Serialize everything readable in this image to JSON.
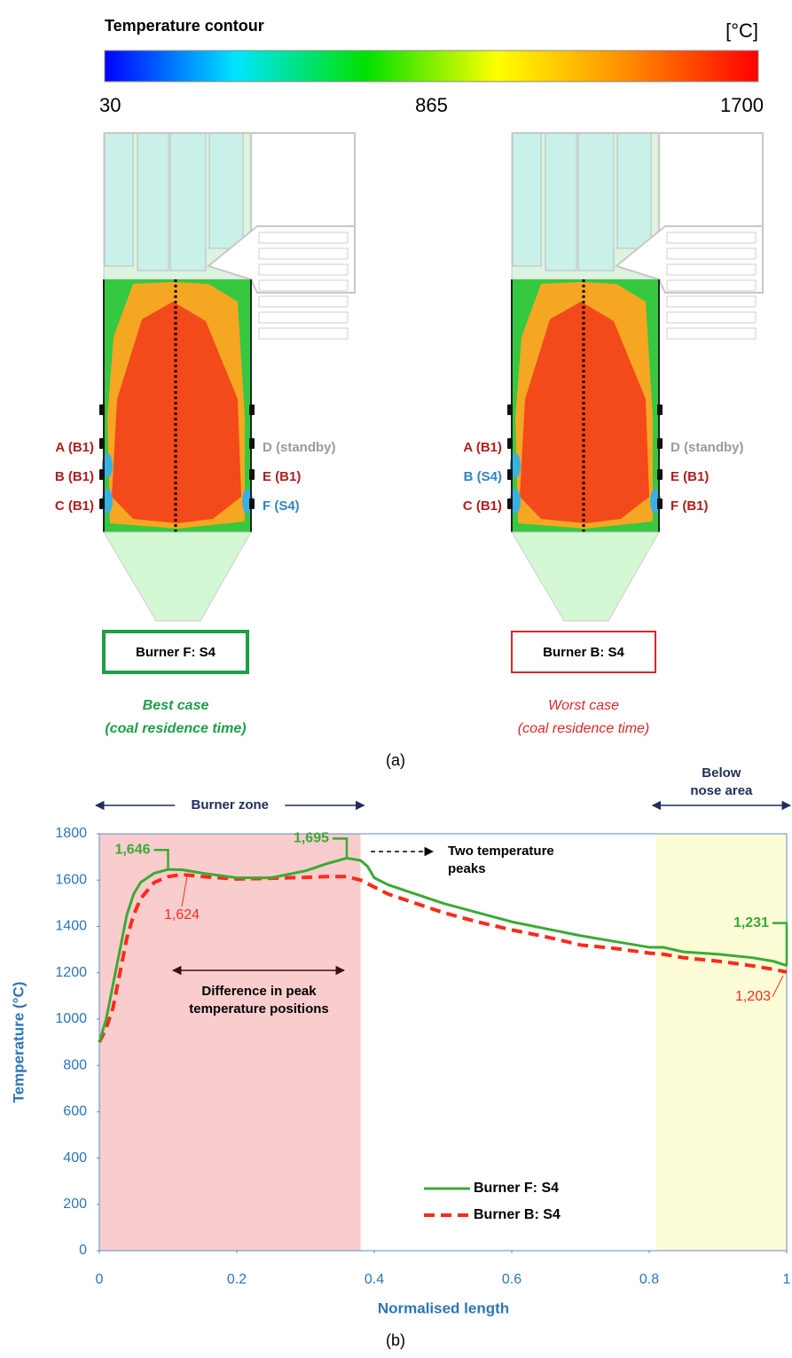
{
  "colorbar": {
    "title": "Temperature contour",
    "unit": "[°C]",
    "colors": [
      "#0000ff",
      "#00e5ff",
      "#00e000",
      "#ffff00",
      "#ff8c00",
      "#ff0000"
    ],
    "range": [
      30,
      1700
    ],
    "ticks": [
      30,
      865,
      1700
    ]
  },
  "furnaces": [
    {
      "left_labels": [
        {
          "text": "A (B1)",
          "color": "#b01e1e"
        },
        {
          "text": "B (B1)",
          "color": "#b01e1e"
        },
        {
          "text": "C (B1)",
          "color": "#b01e1e"
        }
      ],
      "right_labels": [
        {
          "text": "D (standby)",
          "color": "#9a9a9a"
        },
        {
          "text": "E (B1)",
          "color": "#b01e1e"
        },
        {
          "text": "F (S4)",
          "color": "#2e86c1"
        }
      ],
      "case_label": "Burner F: S4",
      "case_color": "#1e9e4a",
      "caption": [
        "Best case",
        "(coal residence time)"
      ],
      "caption_bold": true
    },
    {
      "left_labels": [
        {
          "text": "A (B1)",
          "color": "#b01e1e"
        },
        {
          "text": "B (S4)",
          "color": "#2e86c1"
        },
        {
          "text": "C (B1)",
          "color": "#b01e1e"
        }
      ],
      "right_labels": [
        {
          "text": "D (standby)",
          "color": "#9a9a9a"
        },
        {
          "text": "E (B1)",
          "color": "#b01e1e"
        },
        {
          "text": "F (B1)",
          "color": "#b01e1e"
        }
      ],
      "case_label": "Burner B: S4",
      "case_color": "#d42a2a",
      "caption": [
        "Worst case",
        "(coal residence time)"
      ],
      "caption_bold": false
    }
  ],
  "panel_labels": [
    "(a)",
    "(b)"
  ],
  "chart_data": {
    "type": "line",
    "xlabel": "Normalised length",
    "ylabel": "Temperature (°C)",
    "xlim": [
      0,
      1
    ],
    "ylim": [
      0,
      1800
    ],
    "xticks": [
      0,
      0.2,
      0.4,
      0.6,
      0.8,
      1
    ],
    "yticks": [
      0,
      200,
      400,
      600,
      800,
      1000,
      1200,
      1400,
      1600,
      1800
    ],
    "legend": "lower right",
    "x": [
      0,
      0.01,
      0.02,
      0.03,
      0.04,
      0.05,
      0.06,
      0.08,
      0.1,
      0.12,
      0.15,
      0.2,
      0.25,
      0.3,
      0.33,
      0.36,
      0.38,
      0.39,
      0.4,
      0.42,
      0.45,
      0.5,
      0.55,
      0.6,
      0.65,
      0.7,
      0.75,
      0.8,
      0.82,
      0.85,
      0.9,
      0.95,
      0.98,
      1
    ],
    "series": [
      {
        "name": "Burner F: S4",
        "color": "#3aaa35",
        "dashed": false,
        "values": [
          900,
          1000,
          1150,
          1300,
          1450,
          1540,
          1590,
          1630,
          1646,
          1645,
          1630,
          1610,
          1610,
          1640,
          1670,
          1695,
          1685,
          1660,
          1610,
          1580,
          1550,
          1500,
          1460,
          1420,
          1390,
          1360,
          1335,
          1310,
          1310,
          1290,
          1280,
          1265,
          1250,
          1231
        ]
      },
      {
        "name": "Burner B: S4",
        "color": "#ff2a1a",
        "dashed": true,
        "values": [
          900,
          960,
          1050,
          1200,
          1350,
          1450,
          1520,
          1590,
          1615,
          1624,
          1615,
          1605,
          1608,
          1612,
          1615,
          1615,
          1600,
          1585,
          1570,
          1540,
          1510,
          1460,
          1420,
          1385,
          1355,
          1320,
          1305,
          1285,
          1280,
          1265,
          1250,
          1230,
          1215,
          1203
        ]
      }
    ],
    "regions": [
      {
        "label": [
          "Burner zone"
        ],
        "x": [
          0,
          0.38
        ],
        "color": "#f9cdcd"
      },
      {
        "label": [
          "Below",
          "nose area"
        ],
        "x": [
          0.81,
          1
        ],
        "color": "#fcfcd6"
      }
    ],
    "value_annotations": [
      {
        "label": "1,646",
        "x": 0.1,
        "y": 1646,
        "series": 0
      },
      {
        "label": "1,695",
        "x": 0.36,
        "y": 1695,
        "series": 0
      },
      {
        "label": "1,624",
        "x": 0.12,
        "y": 1624,
        "series": 1
      },
      {
        "label": "1,231",
        "x": 1,
        "y": 1231,
        "series": 0
      },
      {
        "label": "1,203",
        "x": 1,
        "y": 1203,
        "series": 1
      }
    ],
    "notes": [
      {
        "lines": [
          "Two temperature",
          "peaks"
        ]
      },
      {
        "lines": [
          "Difference in peak",
          "temperature positions"
        ]
      }
    ]
  }
}
